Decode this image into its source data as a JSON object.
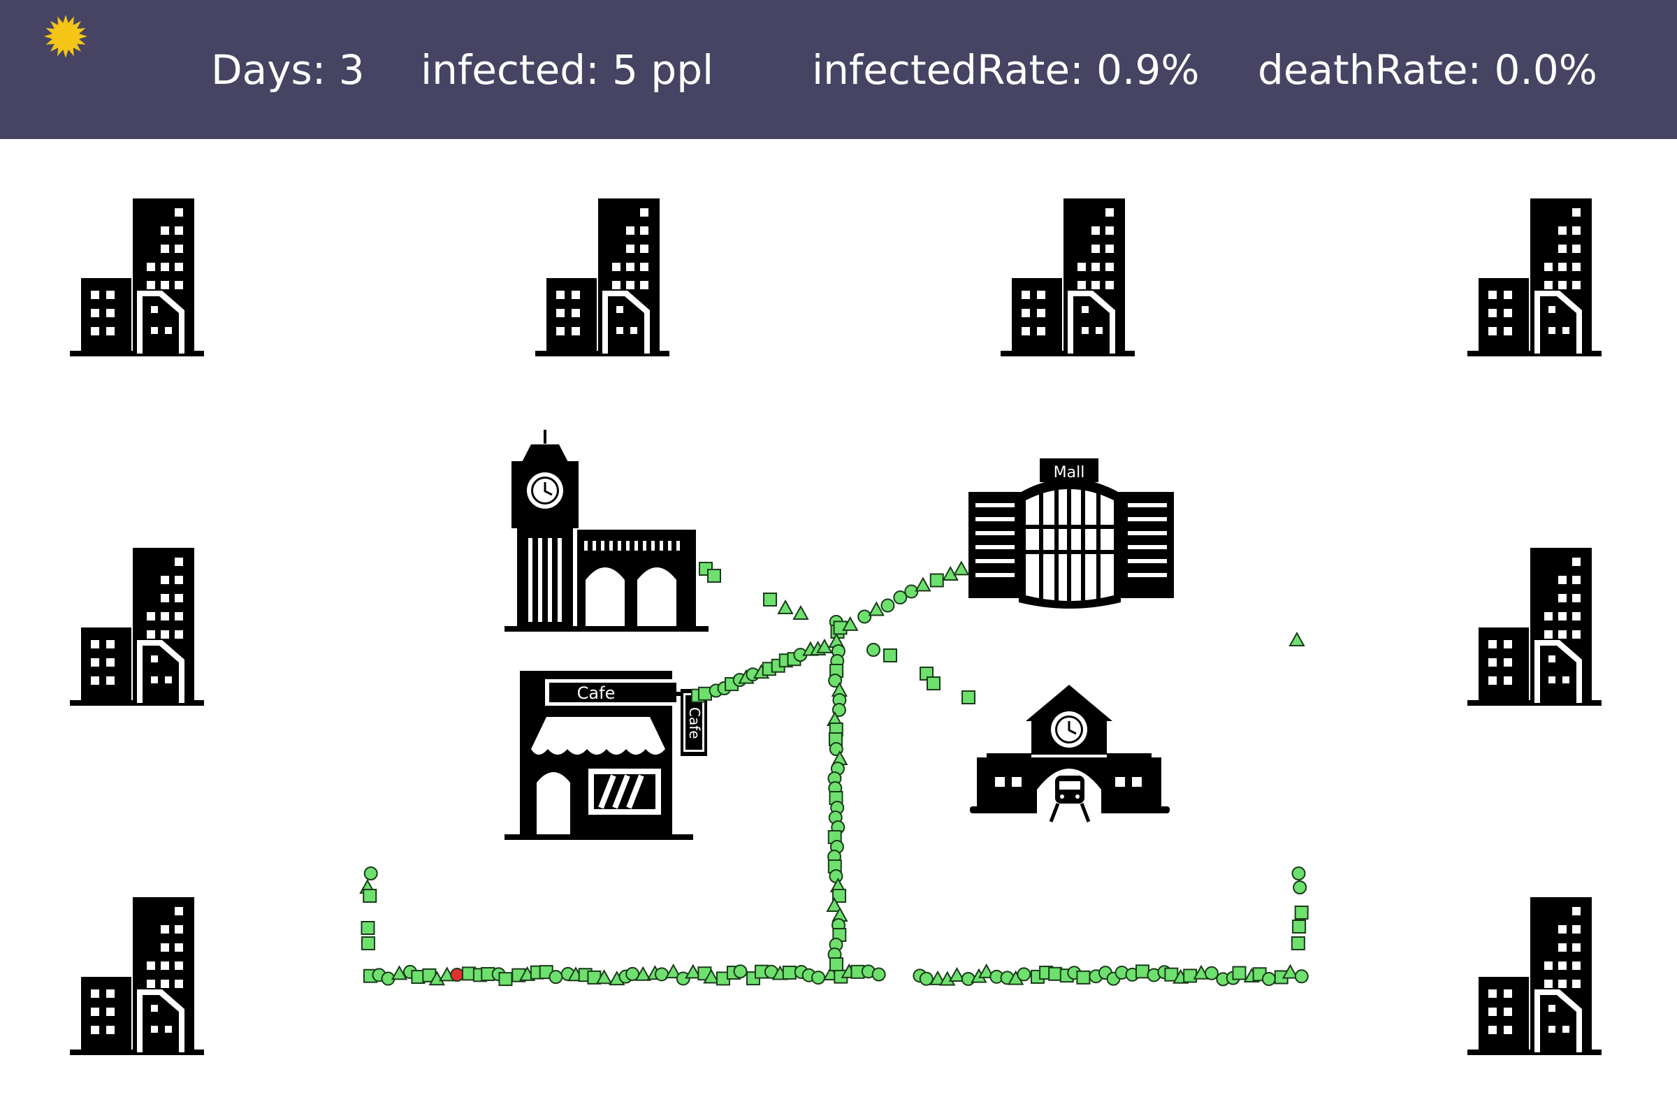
{
  "hud": {
    "days": "Days: 3",
    "infected": "infected: 5 ppl",
    "infected_rate": "infectedRate: 0.9%",
    "death_rate": "deathRate: 0.0%",
    "time_of_day_icon": "sun-icon"
  },
  "map": {
    "buildings": [
      {
        "name": "apartment-icon"
      },
      {
        "name": "apartment-icon"
      },
      {
        "name": "apartment-icon"
      },
      {
        "name": "apartment-icon"
      },
      {
        "name": "apartment-icon"
      },
      {
        "name": "apartment-icon"
      },
      {
        "name": "apartment-icon"
      },
      {
        "name": "apartment-icon"
      }
    ],
    "clock_tower_icon": "clock-tower-icon",
    "mall": {
      "icon": "mall-icon",
      "sign": "Mall"
    },
    "cafe": {
      "icon": "cafe-icon",
      "sign": "Cafe",
      "side_sign": "Cafe"
    },
    "station_icon": "train-station-icon"
  },
  "colors": {
    "header": "#464462",
    "agent_healthy": "#6ee06e",
    "agent_infected": "#e03030",
    "building": "#000000",
    "sun": "#f5c518"
  },
  "agents": {
    "shapes": [
      "square",
      "circle",
      "triangle"
    ],
    "infected_count": 5
  }
}
